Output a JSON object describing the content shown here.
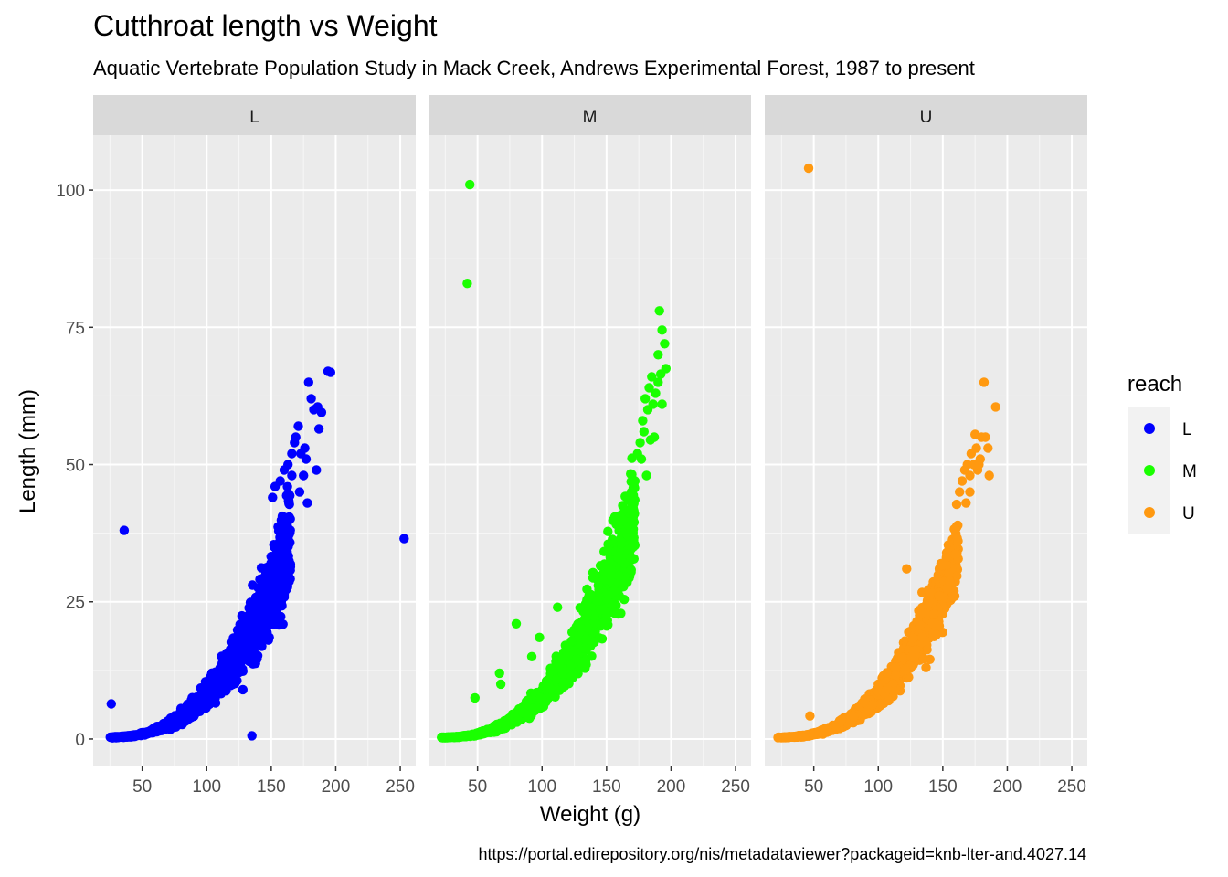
{
  "chart_data": {
    "type": "scatter",
    "title": "Cutthroat length vs Weight",
    "subtitle": "Aquatic Vertebrate Population Study in Mack Creek, Andrews Experimental Forest, 1987 to present",
    "caption": "https://portal.edirepository.org/nis/metadataviewer?packageid=knb-lter-and.4027.14",
    "xlabel": "Weight (g)",
    "ylabel": "Length (mm)",
    "xlim": [
      12,
      262
    ],
    "ylim": [
      -5,
      110
    ],
    "xticks": [
      50,
      100,
      150,
      200,
      250
    ],
    "yticks": [
      0,
      25,
      50,
      75,
      100
    ],
    "grid": true,
    "legend": {
      "title": "reach",
      "position": "right",
      "entries": [
        "L",
        "M",
        "U"
      ]
    },
    "colors": {
      "L": "#0000ff",
      "M": "#1aff00",
      "U": "#ff9910"
    },
    "panel_background": "#ebebeb",
    "strip_background": "#d9d9d9",
    "facets": [
      {
        "label": "L",
        "series": "L",
        "curve": {
          "x_range": [
            25,
            165
          ],
          "spread": 0.14
        },
        "points": [
          [
            26,
            6.4
          ],
          [
            36,
            38
          ],
          [
            135,
            0.6
          ],
          [
            128,
            9
          ],
          [
            253,
            36.5
          ],
          [
            151,
            44
          ],
          [
            153,
            46
          ],
          [
            157,
            47
          ],
          [
            160,
            49
          ],
          [
            163,
            50
          ],
          [
            166,
            52
          ],
          [
            168,
            54
          ],
          [
            169,
            55
          ],
          [
            171,
            57
          ],
          [
            173,
            52
          ],
          [
            175,
            48
          ],
          [
            176,
            53
          ],
          [
            177,
            51
          ],
          [
            179,
            65
          ],
          [
            181,
            62
          ],
          [
            183,
            60
          ],
          [
            186,
            60.5
          ],
          [
            187,
            56.5
          ],
          [
            185,
            49
          ],
          [
            178,
            43
          ],
          [
            189,
            59.5
          ],
          [
            194,
            67
          ],
          [
            196,
            66.8
          ],
          [
            172,
            45
          ],
          [
            166,
            48
          ]
        ]
      },
      {
        "label": "M",
        "series": "M",
        "curve": {
          "x_range": [
            22,
            172
          ],
          "spread": 0.13
        },
        "points": [
          [
            44,
            101
          ],
          [
            42,
            83
          ],
          [
            48,
            7.5
          ],
          [
            67,
            12
          ],
          [
            68,
            10
          ],
          [
            80,
            21
          ],
          [
            92,
            15
          ],
          [
            98,
            18.5
          ],
          [
            112,
            24
          ],
          [
            130,
            14
          ],
          [
            125,
            16
          ],
          [
            135,
            23
          ],
          [
            172,
            47
          ],
          [
            174,
            52
          ],
          [
            176,
            54
          ],
          [
            178,
            58
          ],
          [
            179,
            56
          ],
          [
            180,
            62
          ],
          [
            182,
            60
          ],
          [
            183,
            64
          ],
          [
            185,
            66
          ],
          [
            186,
            61
          ],
          [
            188,
            63
          ],
          [
            190,
            65
          ],
          [
            191,
            78
          ],
          [
            193,
            74.5
          ],
          [
            195,
            72
          ],
          [
            196,
            67.5
          ],
          [
            193,
            61
          ],
          [
            187,
            55
          ],
          [
            184,
            54.5
          ],
          [
            190,
            70
          ],
          [
            192,
            66.5
          ],
          [
            181,
            48
          ],
          [
            177,
            51
          ]
        ]
      },
      {
        "label": "U",
        "series": "U",
        "curve": {
          "x_range": [
            22,
            162
          ],
          "spread": 0.12
        },
        "points": [
          [
            46,
            104
          ],
          [
            47,
            4.2
          ],
          [
            100,
            10
          ],
          [
            108,
            7
          ],
          [
            122,
            31
          ],
          [
            140,
            14.5
          ],
          [
            137,
            13
          ],
          [
            145,
            19
          ],
          [
            163,
            45
          ],
          [
            165,
            47
          ],
          [
            167,
            49
          ],
          [
            169,
            50
          ],
          [
            171,
            48
          ],
          [
            172,
            52
          ],
          [
            174,
            50
          ],
          [
            175,
            55.5
          ],
          [
            176,
            53
          ],
          [
            177,
            49
          ],
          [
            178,
            50
          ],
          [
            179,
            51
          ],
          [
            180,
            55
          ],
          [
            182,
            65
          ],
          [
            183,
            55
          ],
          [
            185,
            53
          ],
          [
            186,
            48
          ],
          [
            191,
            60.5
          ],
          [
            168,
            43
          ],
          [
            171,
            45
          ]
        ]
      }
    ]
  }
}
